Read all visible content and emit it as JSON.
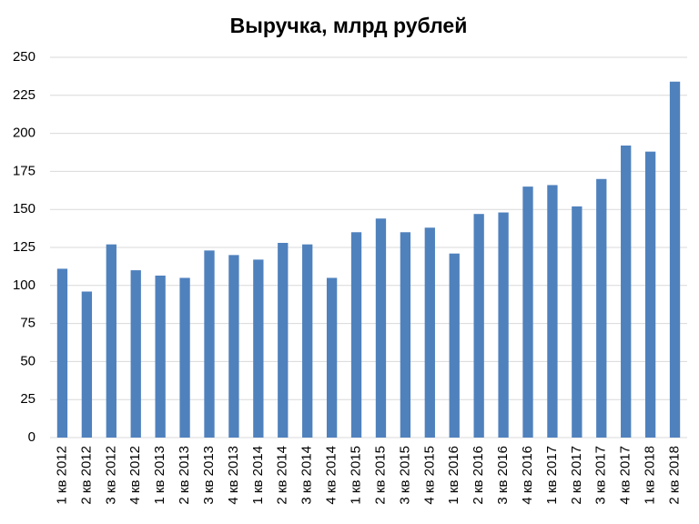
{
  "chart_data": {
    "type": "bar",
    "title": "Выручка, млрд рублей",
    "categories": [
      "1 кв 2012",
      "2 кв 2012",
      "3 кв 2012",
      "4 кв 2012",
      "1 кв 2013",
      "2 кв 2013",
      "3 кв 2013",
      "4 кв 2013",
      "1 кв 2014",
      "2 кв 2014",
      "3 кв 2014",
      "4 кв 2014",
      "1 кв 2015",
      "2 кв 2015",
      "3 кв 2015",
      "4 кв 2015",
      "1 кв 2016",
      "2 кв 2016",
      "3 кв 2016",
      "4 кв 2016",
      "1 кв 2017",
      "2 кв 2017",
      "3 кв 2017",
      "4 кв 2017",
      "1 кв 2018",
      "2 кв 2018"
    ],
    "values": [
      111,
      96,
      127,
      110,
      106.5,
      105,
      123,
      120,
      117,
      128,
      127,
      105,
      135,
      144,
      135,
      138,
      121,
      147,
      148,
      165,
      166,
      152,
      170,
      192,
      188,
      234
    ],
    "color": "#4f81bd",
    "ylim": [
      0,
      250
    ],
    "yticks": [
      0,
      25,
      50,
      75,
      100,
      125,
      150,
      175,
      200,
      225,
      250
    ],
    "grid": true
  }
}
